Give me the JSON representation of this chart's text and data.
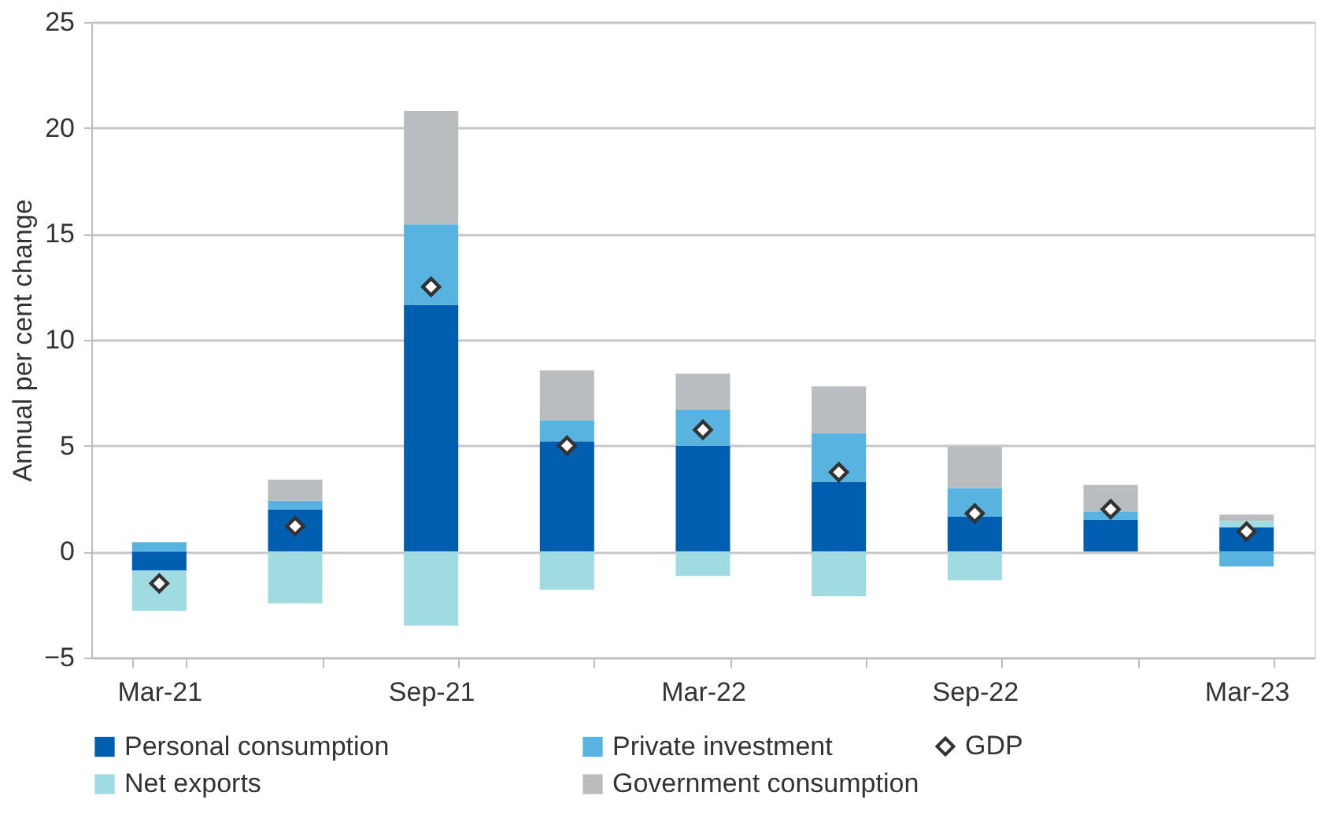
{
  "chart_data": {
    "type": "bar",
    "ylabel": "Annual per cent change",
    "categories": [
      "Mar-21",
      null,
      "Sep-21",
      null,
      "Mar-22",
      null,
      "Sep-22",
      null,
      "Mar-23"
    ],
    "stacked": true,
    "series": [
      {
        "name": "Personal consumption",
        "color": "#005eb0",
        "values": [
          -0.9,
          2.0,
          11.65,
          5.2,
          5.0,
          3.3,
          1.65,
          1.5,
          1.15
        ]
      },
      {
        "name": "Private investment",
        "color": "#58b3e0",
        "values": [
          0.45,
          0.4,
          3.8,
          1.0,
          1.7,
          2.3,
          1.35,
          0.4,
          -0.7
        ]
      },
      {
        "name": "Net exports",
        "color": "#a0dbe1",
        "values": [
          -1.9,
          -2.45,
          -3.5,
          -1.8,
          -1.15,
          -2.1,
          -1.35,
          0,
          0.3
        ]
      },
      {
        "name": "Government consumption",
        "color": "#babdc0",
        "values": [
          0,
          1.0,
          5.35,
          2.35,
          1.7,
          2.2,
          1.95,
          1.25,
          0.3
        ]
      },
      {
        "name": "GDP",
        "type": "scatter",
        "marker": "diamond",
        "color": "#ffffff",
        "values": [
          -1.5,
          1.2,
          12.5,
          5.0,
          5.75,
          3.75,
          1.8,
          2.0,
          0.95
        ]
      }
    ],
    "ylim": [
      -5,
      25
    ],
    "yticks": [
      -5,
      0,
      5,
      10,
      15,
      20,
      25
    ],
    "grid": "y",
    "legend": "bottom"
  }
}
